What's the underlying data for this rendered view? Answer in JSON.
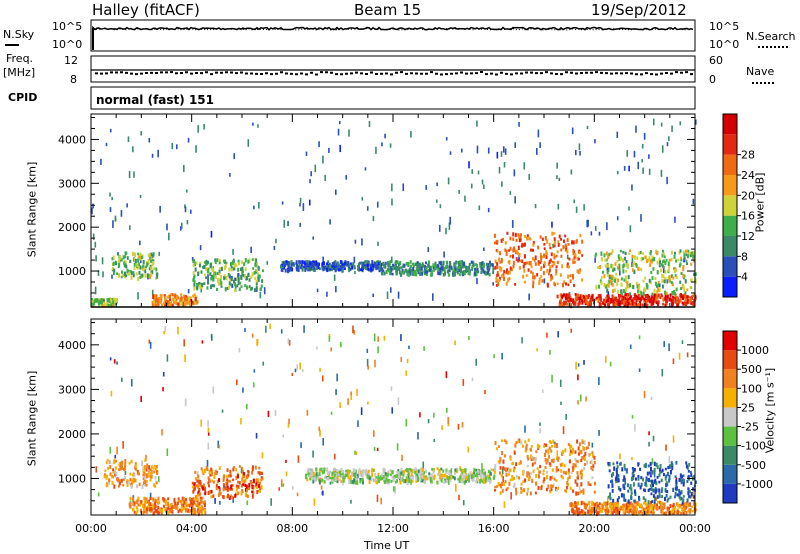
{
  "header": {
    "station": "Halley (fitACF)",
    "beam": "Beam 15",
    "date": "19/Sep/2012"
  },
  "top_strips": {
    "nsky": {
      "label": "N.Sky",
      "left_ticks": [
        "10^5",
        "10^0"
      ],
      "right_ticks": [
        "10^5",
        "10^0"
      ],
      "right_label": "N.Search"
    },
    "freq": {
      "label_line1": "Freq.",
      "label_line2": "[MHz]",
      "left_ticks": [
        "12",
        "8"
      ],
      "right_ticks": [
        "60",
        "0"
      ],
      "right_label": "Nave"
    },
    "cpid": {
      "label": "CPID",
      "mode": "normal (fast) 151"
    }
  },
  "chart_data": [
    {
      "type": "heatmap",
      "name": "power",
      "ylabel": "Slant Range [km]",
      "xlabel": "Time UT",
      "x_ticks": [
        "00:00",
        "04:00",
        "08:00",
        "12:00",
        "16:00",
        "20:00",
        "00:00"
      ],
      "y_ticks": [
        1000,
        2000,
        3000,
        4000
      ],
      "ylim": [
        180,
        4580
      ],
      "colorbar": {
        "label": "Power [dB]",
        "ticks": [
          4,
          8,
          12,
          16,
          20,
          24,
          28
        ],
        "colors": [
          "#0a1eff",
          "#2a4fb8",
          "#3a8a6a",
          "#3fae4a",
          "#cfd33a",
          "#f59a1a",
          "#f06a14",
          "#e32a10",
          "#d40000"
        ]
      },
      "bands": [
        {
          "t0": 0.0,
          "t1": 1.0,
          "r0": 250,
          "r1": 400,
          "level": 0.45
        },
        {
          "t0": 0.8,
          "t1": 2.6,
          "r0": 850,
          "r1": 1450,
          "level": 0.4
        },
        {
          "t0": 2.4,
          "t1": 4.2,
          "r0": 250,
          "r1": 500,
          "level": 0.7
        },
        {
          "t0": 4.0,
          "t1": 6.8,
          "r0": 600,
          "r1": 1300,
          "level": 0.35
        },
        {
          "t0": 7.5,
          "t1": 11.5,
          "r0": 1050,
          "r1": 1250,
          "level": 0.15
        },
        {
          "t0": 11.5,
          "t1": 16.0,
          "r0": 950,
          "r1": 1250,
          "level": 0.25
        },
        {
          "t0": 16.0,
          "t1": 19.5,
          "r0": 700,
          "r1": 1900,
          "level": 0.75
        },
        {
          "t0": 18.5,
          "t1": 24.0,
          "r0": 250,
          "r1": 500,
          "level": 0.9
        },
        {
          "t0": 20.0,
          "t1": 24.0,
          "r0": 500,
          "r1": 1500,
          "level": 0.45
        }
      ]
    },
    {
      "type": "heatmap",
      "name": "velocity",
      "ylabel": "Slant Range [km]",
      "xlabel": "Time UT",
      "x_ticks": [
        "00:00",
        "04:00",
        "08:00",
        "12:00",
        "16:00",
        "20:00",
        "00:00"
      ],
      "y_ticks": [
        1000,
        2000,
        3000,
        4000
      ],
      "ylim": [
        180,
        4580
      ],
      "colorbar": {
        "label": "Velocity [m s⁻¹]",
        "ticks": [
          1000,
          500,
          100,
          25,
          -25,
          -100,
          -500,
          -1000
        ],
        "colors": [
          "#1f3cc0",
          "#2a6aa8",
          "#3a8a6a",
          "#5cc040",
          "#c8c8c8",
          "#f5b000",
          "#f08020",
          "#e84a14",
          "#e00000"
        ]
      },
      "bands": [
        {
          "t0": 0.5,
          "t1": 2.6,
          "r0": 850,
          "r1": 1450,
          "level": 0.7
        },
        {
          "t0": 1.5,
          "t1": 4.5,
          "r0": 250,
          "r1": 600,
          "level": 0.75
        },
        {
          "t0": 4.0,
          "t1": 6.8,
          "r0": 600,
          "r1": 1300,
          "level": 0.8
        },
        {
          "t0": 8.5,
          "t1": 16.0,
          "r0": 950,
          "r1": 1250,
          "level": 0.45
        },
        {
          "t0": 16.0,
          "t1": 20.0,
          "r0": 700,
          "r1": 1900,
          "level": 0.7
        },
        {
          "t0": 19.0,
          "t1": 24.0,
          "r0": 250,
          "r1": 500,
          "level": 0.75
        },
        {
          "t0": 20.5,
          "t1": 24.0,
          "r0": 500,
          "r1": 1400,
          "level": 0.1
        }
      ]
    }
  ]
}
